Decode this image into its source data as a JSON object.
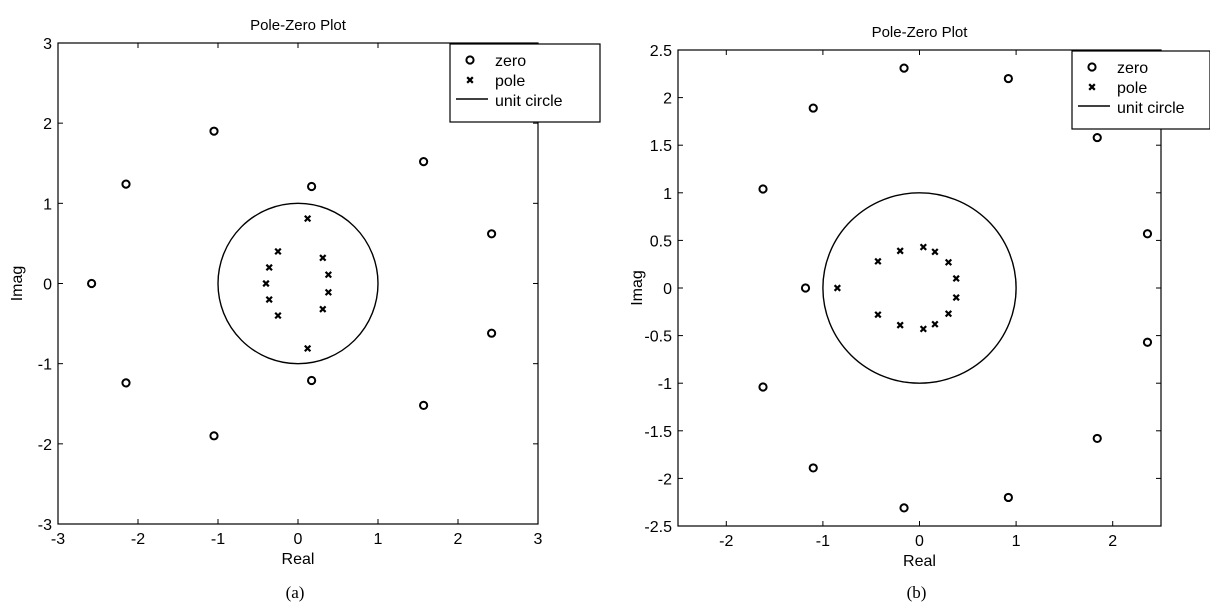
{
  "chart_data": [
    {
      "type": "scatter",
      "title": "Pole-Zero Plot",
      "xlabel": "Real",
      "ylabel": "Imag",
      "caption": "(a)",
      "xlim": [
        -3,
        3
      ],
      "ylim": [
        -3,
        3
      ],
      "xticks": [
        -3,
        -2,
        -1,
        0,
        1,
        2,
        3
      ],
      "yticks": [
        -3,
        -2,
        -1,
        0,
        1,
        2,
        3
      ],
      "xtick_labels": [
        "-3",
        "-2",
        "-1",
        "0",
        "1",
        "2",
        "3"
      ],
      "ytick_labels": [
        "-3",
        "-2",
        "-1",
        "0",
        "1",
        "2",
        "3"
      ],
      "grid": false,
      "legend_position": "top-right",
      "legend": [
        "zero",
        "pole",
        "unit circle"
      ],
      "series": [
        {
          "name": "zero",
          "marker": "o",
          "points": [
            [
              -2.58,
              0
            ],
            [
              -2.15,
              1.24
            ],
            [
              -2.15,
              -1.24
            ],
            [
              -1.05,
              1.9
            ],
            [
              -1.05,
              -1.9
            ],
            [
              0.17,
              1.21
            ],
            [
              0.17,
              -1.21
            ],
            [
              1.57,
              1.52
            ],
            [
              1.57,
              -1.52
            ],
            [
              2.42,
              0.62
            ],
            [
              2.42,
              -0.62
            ]
          ]
        },
        {
          "name": "pole",
          "marker": "x",
          "points": [
            [
              0.12,
              0.81
            ],
            [
              0.12,
              -0.81
            ],
            [
              -0.25,
              0.4
            ],
            [
              -0.25,
              -0.4
            ],
            [
              -0.36,
              0.2
            ],
            [
              -0.36,
              -0.2
            ],
            [
              -0.4,
              0.0
            ],
            [
              0.31,
              0.32
            ],
            [
              0.31,
              -0.32
            ],
            [
              0.38,
              0.11
            ],
            [
              0.38,
              -0.11
            ]
          ]
        },
        {
          "name": "unit circle",
          "style": "solid line",
          "radius": 1
        }
      ]
    },
    {
      "type": "scatter",
      "title": "Pole-Zero Plot",
      "xlabel": "Real",
      "ylabel": "Imag",
      "caption": "(b)",
      "xlim": [
        -2.5,
        2.5
      ],
      "ylim": [
        -2.5,
        2.5
      ],
      "xticks": [
        -2,
        -1,
        0,
        1,
        2
      ],
      "yticks": [
        -2.5,
        -2,
        -1.5,
        -1,
        -0.5,
        0,
        0.5,
        1,
        1.5,
        2,
        2.5
      ],
      "xtick_labels": [
        "-2",
        "-1",
        "0",
        "1",
        "2"
      ],
      "ytick_labels": [
        "-2.5",
        "-2",
        "-1.5",
        "-1",
        "-0.5",
        "0",
        "0.5",
        "1",
        "1.5",
        "2",
        "2.5"
      ],
      "grid": false,
      "legend_position": "top-right",
      "legend": [
        "zero",
        "pole",
        "unit circle"
      ],
      "series": [
        {
          "name": "zero",
          "marker": "o",
          "points": [
            [
              -1.62,
              1.04
            ],
            [
              -1.62,
              -1.04
            ],
            [
              -1.18,
              0
            ],
            [
              -1.1,
              1.89
            ],
            [
              -1.1,
              -1.89
            ],
            [
              -0.16,
              2.31
            ],
            [
              -0.16,
              -2.31
            ],
            [
              0.92,
              2.2
            ],
            [
              0.92,
              -2.2
            ],
            [
              1.84,
              1.58
            ],
            [
              1.84,
              -1.58
            ],
            [
              2.36,
              0.57
            ],
            [
              2.36,
              -0.57
            ]
          ]
        },
        {
          "name": "pole",
          "marker": "x",
          "points": [
            [
              -0.85,
              0
            ],
            [
              -0.43,
              0.28
            ],
            [
              -0.43,
              -0.28
            ],
            [
              -0.2,
              0.39
            ],
            [
              -0.2,
              -0.39
            ],
            [
              0.04,
              0.43
            ],
            [
              0.04,
              -0.43
            ],
            [
              0.16,
              0.38
            ],
            [
              0.16,
              -0.38
            ],
            [
              0.3,
              0.27
            ],
            [
              0.3,
              -0.27
            ],
            [
              0.38,
              0.1
            ],
            [
              0.38,
              -0.1
            ]
          ]
        },
        {
          "name": "unit circle",
          "style": "solid line",
          "radius": 1
        }
      ]
    }
  ]
}
